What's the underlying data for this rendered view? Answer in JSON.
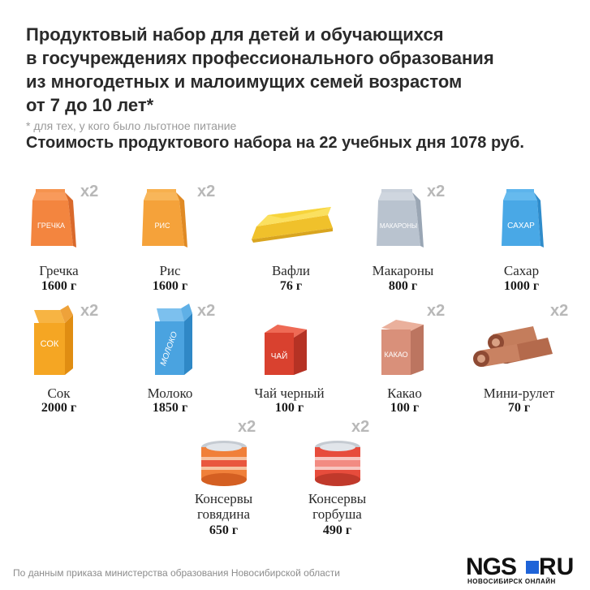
{
  "title_lines": [
    "Продуктовый набор для детей и обучающихся",
    "в госучреждениях профессионального образования",
    "из многодетных и малоимущих семей возрастом",
    "от 7 до 10 лет*"
  ],
  "footnote": "*  для тех, у кого было льготное питание",
  "cost_line": "Стоимость продуктового набора на 22 учебных дня 1078 руб.",
  "items": [
    {
      "name": "Гречка",
      "weight": "1600 г",
      "multiplier": "х2",
      "label": "ГРЕЧКА",
      "icon": "bag-icon",
      "color": "#f3853f"
    },
    {
      "name": "Рис",
      "weight": "1600 г",
      "multiplier": "х2",
      "label": "РИС",
      "icon": "bag-icon",
      "color": "#f5a23a"
    },
    {
      "name": "Вафли",
      "weight": "76 г",
      "multiplier": "",
      "label": "",
      "icon": "wafer-icon",
      "color": "#f7d43c"
    },
    {
      "name": "Макароны",
      "weight": "800 г",
      "multiplier": "х2",
      "label": "МАКАРОНЫ",
      "icon": "bag-icon",
      "color": "#b9c3cf"
    },
    {
      "name": "Сахар",
      "weight": "1000 г",
      "multiplier": "",
      "label": "САХАР",
      "icon": "bag-icon",
      "color": "#49a8e6"
    },
    {
      "name": "Сок",
      "weight": "2000 г",
      "multiplier": "х2",
      "label": "СОК",
      "icon": "carton-icon",
      "color": "#f5a623"
    },
    {
      "name": "Молоко",
      "weight": "1850 г",
      "multiplier": "х2",
      "label": "МОЛОКО",
      "icon": "carton-icon",
      "color": "#4aa3e0"
    },
    {
      "name": "Чай черный",
      "weight": "100 г",
      "multiplier": "",
      "label": "ЧАЙ",
      "icon": "box-icon",
      "color": "#d9412f"
    },
    {
      "name": "Какао",
      "weight": "100 г",
      "multiplier": "х2",
      "label": "КАКАО",
      "icon": "box-icon",
      "color": "#d9907a"
    },
    {
      "name": "Мини-рулет",
      "weight": "70 г",
      "multiplier": "х2",
      "label": "",
      "icon": "roll-icon",
      "color": "#b46a4c"
    },
    {
      "name": "Консервы говядина",
      "weight": "650 г",
      "multiplier": "х2",
      "label": "",
      "icon": "can-icon",
      "color": "#f07f3a"
    },
    {
      "name": "Консервы горбуша",
      "weight": "490 г",
      "multiplier": "х2",
      "label": "",
      "icon": "can-icon",
      "color": "#e74c3c"
    }
  ],
  "source": "По данным приказа министерства образования Новосибирской области",
  "logo": {
    "left": "NGS",
    "right": "RU",
    "sub": "НОВОСИБИРСК ОНЛАЙН"
  }
}
